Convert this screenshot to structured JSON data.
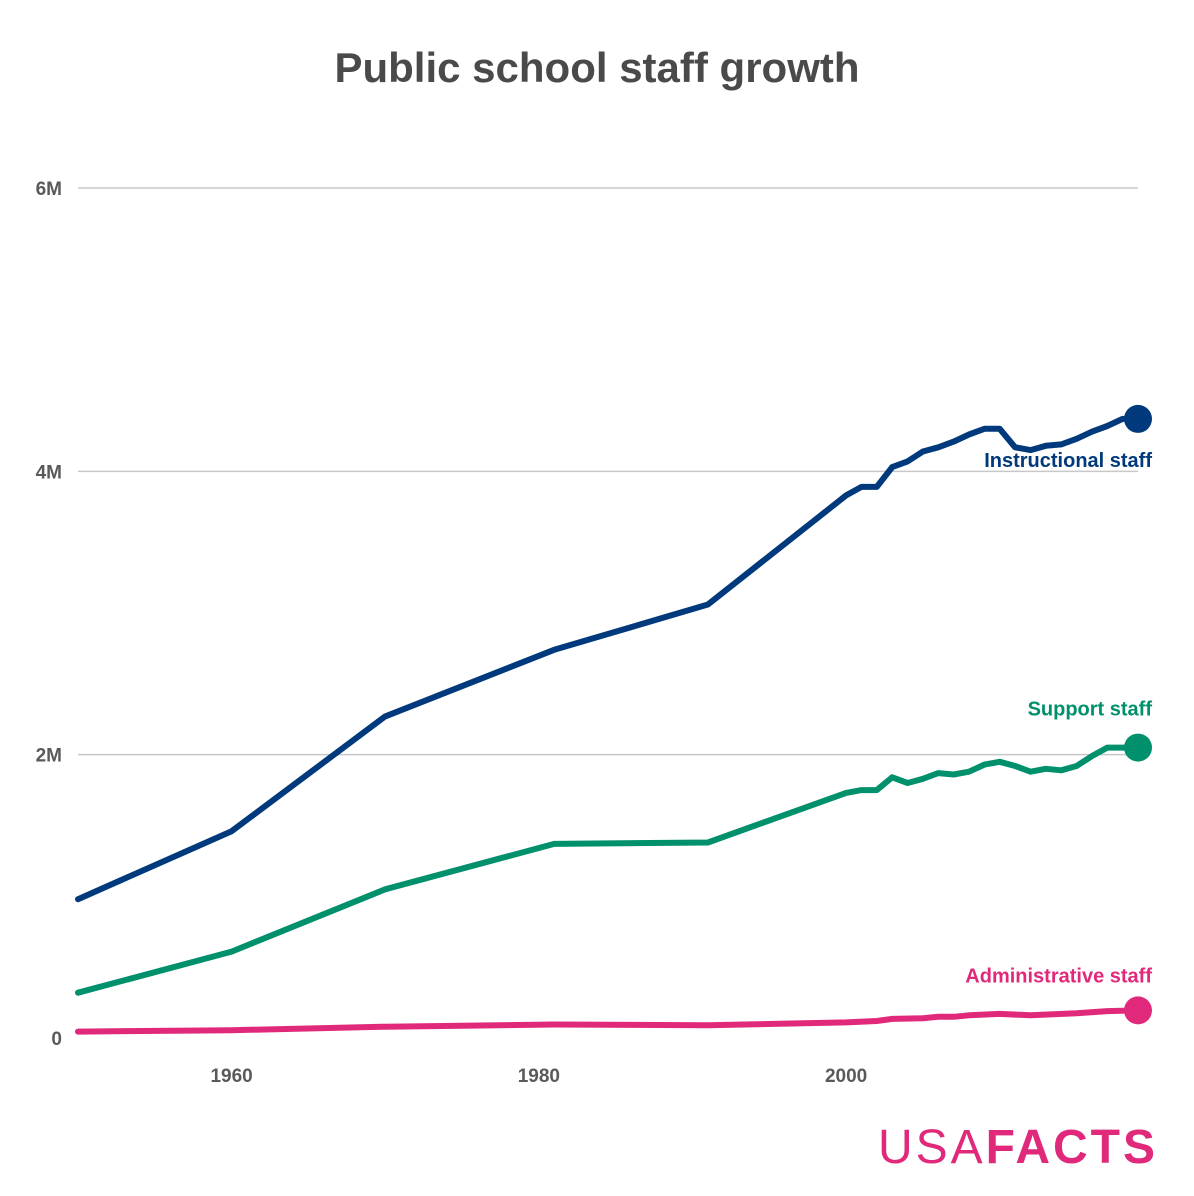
{
  "header": {
    "title": "Public school staff growth"
  },
  "brand": {
    "light": "USA",
    "bold": "FACTS",
    "color": "#e0297a"
  },
  "chart_data": {
    "type": "line",
    "title": "Public school staff growth",
    "xlabel": "",
    "ylabel": "",
    "xlim": [
      1950,
      2019
    ],
    "ylim": [
      0,
      6000000
    ],
    "x_ticks": [
      {
        "value": 1960,
        "label": "1960"
      },
      {
        "value": 1980,
        "label": "1980"
      },
      {
        "value": 2000,
        "label": "2000"
      }
    ],
    "y_ticks": [
      {
        "value": 0,
        "label": "0"
      },
      {
        "value": 2000000,
        "label": "2M"
      },
      {
        "value": 4000000,
        "label": "4M"
      },
      {
        "value": 6000000,
        "label": "6M"
      }
    ],
    "grid": true,
    "legend": "direct labels at line ends",
    "series": [
      {
        "name": "Instructional staff",
        "color": "#003a7d",
        "points": [
          [
            1950,
            980000
          ],
          [
            1960,
            1460000
          ],
          [
            1970,
            2270000
          ],
          [
            1981,
            2740000
          ],
          [
            1991,
            3060000
          ],
          [
            2000,
            3830000
          ],
          [
            2001,
            3890000
          ],
          [
            2002,
            3890000
          ],
          [
            2003,
            4030000
          ],
          [
            2004,
            4070000
          ],
          [
            2005,
            4140000
          ],
          [
            2006,
            4170000
          ],
          [
            2007,
            4210000
          ],
          [
            2008,
            4260000
          ],
          [
            2009,
            4300000
          ],
          [
            2010,
            4300000
          ],
          [
            2011,
            4170000
          ],
          [
            2012,
            4150000
          ],
          [
            2013,
            4180000
          ],
          [
            2014,
            4190000
          ],
          [
            2015,
            4230000
          ],
          [
            2016,
            4280000
          ],
          [
            2017,
            4320000
          ],
          [
            2018,
            4370000
          ],
          [
            2019,
            4370000
          ]
        ]
      },
      {
        "name": "Support staff",
        "color": "#00906b",
        "points": [
          [
            1950,
            320000
          ],
          [
            1960,
            610000
          ],
          [
            1970,
            1050000
          ],
          [
            1981,
            1370000
          ],
          [
            1991,
            1380000
          ],
          [
            2000,
            1730000
          ],
          [
            2001,
            1750000
          ],
          [
            2002,
            1750000
          ],
          [
            2003,
            1840000
          ],
          [
            2004,
            1800000
          ],
          [
            2005,
            1830000
          ],
          [
            2006,
            1870000
          ],
          [
            2007,
            1860000
          ],
          [
            2008,
            1880000
          ],
          [
            2009,
            1930000
          ],
          [
            2010,
            1950000
          ],
          [
            2011,
            1920000
          ],
          [
            2012,
            1880000
          ],
          [
            2013,
            1900000
          ],
          [
            2014,
            1890000
          ],
          [
            2015,
            1920000
          ],
          [
            2016,
            1990000
          ],
          [
            2017,
            2050000
          ],
          [
            2018,
            2050000
          ],
          [
            2019,
            2050000
          ]
        ]
      },
      {
        "name": "Administrative staff",
        "color": "#e0297a",
        "points": [
          [
            1950,
            45000
          ],
          [
            1960,
            55000
          ],
          [
            1970,
            80000
          ],
          [
            1981,
            95000
          ],
          [
            1991,
            90000
          ],
          [
            2000,
            110000
          ],
          [
            2002,
            120000
          ],
          [
            2003,
            135000
          ],
          [
            2005,
            140000
          ],
          [
            2006,
            150000
          ],
          [
            2007,
            150000
          ],
          [
            2008,
            160000
          ],
          [
            2010,
            170000
          ],
          [
            2012,
            160000
          ],
          [
            2015,
            175000
          ],
          [
            2017,
            190000
          ],
          [
            2019,
            195000
          ]
        ]
      }
    ]
  }
}
